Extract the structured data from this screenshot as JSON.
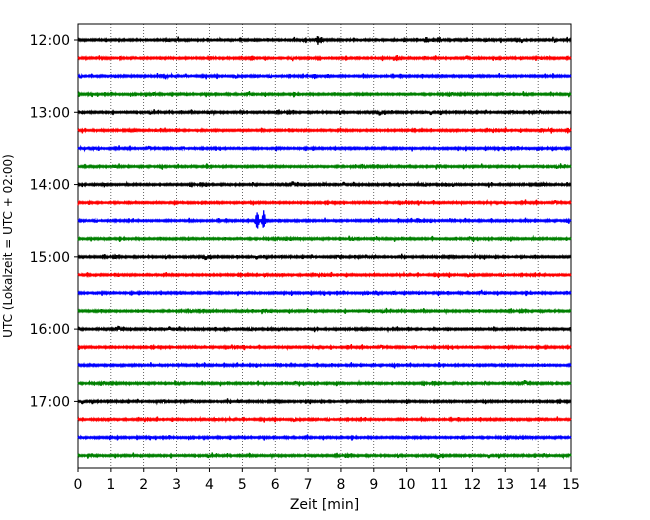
{
  "chart_data": {
    "type": "line",
    "title": "",
    "xlabel": "Zeit  [min]",
    "ylabel": "UTC (Lokalzeit = UTC + 02:00)",
    "xlim": [
      0,
      15
    ],
    "x_ticks": [
      0,
      1,
      2,
      3,
      4,
      5,
      6,
      7,
      8,
      9,
      10,
      11,
      12,
      13,
      14,
      15
    ],
    "y_tick_labels": [
      "12:00",
      "13:00",
      "14:00",
      "15:00",
      "16:00",
      "17:00"
    ],
    "grid": "vertical dotted lines at each minute",
    "trace_interval_minutes": 15,
    "colors_cycle": [
      "#000000",
      "#ff0000",
      "#0000ff",
      "#008000"
    ],
    "series": [
      {
        "start": "12:00",
        "color": "#000000",
        "events": [
          [
            7.3,
            1.0
          ],
          [
            7.4,
            0.8
          ],
          [
            10.6,
            0.6
          ],
          [
            11.0,
            0.6
          ]
        ]
      },
      {
        "start": "12:15",
        "color": "#ff0000",
        "events": [
          [
            5.3,
            0.6
          ],
          [
            9.7,
            0.6
          ]
        ]
      },
      {
        "start": "12:30",
        "color": "#0000ff",
        "events": [
          [
            7.2,
            0.6
          ],
          [
            7.6,
            0.5
          ]
        ]
      },
      {
        "start": "12:45",
        "color": "#008000",
        "events": [
          [
            2.3,
            0.4
          ]
        ]
      },
      {
        "start": "13:00",
        "color": "#000000",
        "events": [
          [
            4.0,
            0.4
          ],
          [
            5.0,
            0.4
          ]
        ]
      },
      {
        "start": "13:15",
        "color": "#ff0000",
        "events": [
          [
            14.1,
            0.5
          ],
          [
            14.4,
            0.6
          ],
          [
            14.9,
            0.5
          ]
        ]
      },
      {
        "start": "13:30",
        "color": "#0000ff",
        "events": [
          [
            0.5,
            0.3
          ]
        ]
      },
      {
        "start": "13:45",
        "color": "#008000",
        "events": [
          [
            1.1,
            0.3
          ]
        ]
      },
      {
        "start": "14:00",
        "color": "#000000",
        "events": [
          [
            0.8,
            0.4
          ],
          [
            7.5,
            0.4
          ],
          [
            11.2,
            0.4
          ],
          [
            14.2,
            0.4
          ]
        ]
      },
      {
        "start": "14:15",
        "color": "#ff0000",
        "events": [
          [
            10.4,
            0.3
          ]
        ]
      },
      {
        "start": "14:30",
        "color": "#0000ff",
        "events": [
          [
            5.45,
            1.9
          ],
          [
            5.65,
            1.9
          ],
          [
            10.4,
            0.4
          ]
        ]
      },
      {
        "start": "14:45",
        "color": "#008000",
        "events": [
          [
            9.0,
            0.4
          ]
        ]
      },
      {
        "start": "15:00",
        "color": "#000000",
        "events": [
          [
            8.0,
            0.5
          ],
          [
            9.0,
            0.4
          ]
        ]
      },
      {
        "start": "15:15",
        "color": "#ff0000",
        "events": [
          [
            5.7,
            0.3
          ]
        ]
      },
      {
        "start": "15:30",
        "color": "#0000ff",
        "events": [
          [
            9.1,
            0.4
          ],
          [
            9.6,
            0.4
          ]
        ]
      },
      {
        "start": "15:45",
        "color": "#008000",
        "events": [
          [
            5.1,
            0.3
          ]
        ]
      },
      {
        "start": "16:00",
        "color": "#000000",
        "events": [
          [
            4.5,
            0.3
          ]
        ]
      },
      {
        "start": "16:15",
        "color": "#ff0000",
        "events": [
          [
            7.3,
            0.3
          ]
        ]
      },
      {
        "start": "16:30",
        "color": "#0000ff",
        "events": [
          [
            3.1,
            0.3
          ]
        ]
      },
      {
        "start": "16:45",
        "color": "#008000",
        "events": [
          [
            5.7,
            0.3
          ]
        ]
      },
      {
        "start": "17:00",
        "color": "#000000",
        "events": [
          [
            4.9,
            0.3
          ]
        ]
      },
      {
        "start": "17:15",
        "color": "#ff0000",
        "events": [
          [
            4.2,
            0.3
          ],
          [
            14.1,
            0.3
          ]
        ]
      },
      {
        "start": "17:30",
        "color": "#0000ff",
        "events": [
          [
            11.7,
            0.4
          ],
          [
            13.4,
            0.3
          ]
        ]
      },
      {
        "start": "17:45",
        "color": "#008000",
        "events": [
          [
            14.3,
            0.3
          ]
        ]
      }
    ]
  }
}
